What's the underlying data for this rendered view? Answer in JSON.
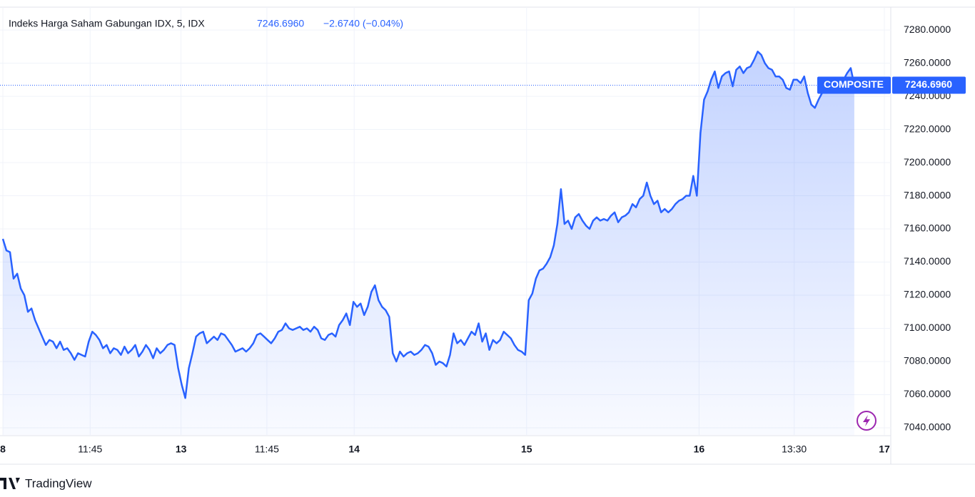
{
  "chart_data": {
    "type": "area",
    "title": "Indeks Harga Saham Gabungan IDX, 5, IDX",
    "last_price": "7246.6960",
    "change": "−2.6740 (−0.04%)",
    "brand": "TradingView",
    "series": [
      {
        "name": "COMPOSITE",
        "color": "#2962ff",
        "x": [
          0,
          1,
          2,
          3,
          4,
          5,
          6,
          7,
          8,
          9,
          10,
          11,
          12,
          13,
          14,
          15,
          16,
          17,
          18,
          19,
          20,
          21,
          22,
          23,
          24,
          25,
          26,
          27,
          28,
          29,
          30,
          31,
          32,
          33,
          34,
          35,
          36,
          37,
          38,
          39,
          40,
          41,
          42,
          43,
          44,
          45,
          46,
          47,
          48,
          49,
          50,
          51,
          52,
          53,
          54,
          55,
          56,
          57,
          58,
          59,
          60,
          61,
          62,
          63,
          64,
          65,
          66,
          67,
          68,
          69,
          70,
          71,
          72,
          73,
          74,
          75,
          76,
          77,
          78,
          79,
          80,
          81,
          82,
          83,
          84,
          85,
          86,
          87,
          88,
          89,
          90,
          91,
          92,
          93,
          94,
          95,
          96,
          97,
          98,
          99,
          100,
          101,
          102,
          103,
          104,
          105,
          106,
          107,
          108,
          109,
          110,
          111,
          112,
          113,
          114,
          115,
          116,
          117,
          118,
          119,
          120,
          121,
          122,
          123,
          124,
          125,
          126,
          127,
          128,
          129,
          130,
          131,
          132,
          133,
          134,
          135,
          136,
          137,
          138,
          139,
          140,
          141,
          142,
          143,
          144,
          145,
          146,
          147,
          148,
          149,
          150,
          151,
          152,
          153,
          154,
          155,
          156,
          157,
          158,
          159,
          160,
          161,
          162,
          163,
          164,
          165,
          166,
          167,
          168,
          169,
          170,
          171,
          172,
          173,
          174,
          175,
          176,
          177,
          178,
          179,
          180,
          181,
          182,
          183,
          184,
          185,
          186,
          187,
          188,
          189,
          190,
          191,
          192,
          193,
          194,
          195,
          196,
          197,
          198,
          199,
          200,
          201,
          202,
          203,
          204,
          205,
          206,
          207,
          208,
          209,
          210,
          211,
          212,
          213,
          214,
          215,
          216,
          217,
          218,
          219,
          220,
          221,
          222,
          223,
          224,
          225,
          226,
          227,
          228,
          229,
          230,
          231,
          232,
          233,
          234,
          235,
          236,
          237,
          238
        ],
        "values": [
          7154,
          7147,
          7146,
          7130,
          7133,
          7124,
          7120,
          7110,
          7112,
          7105,
          7100,
          7095,
          7090,
          7093,
          7092,
          7088,
          7092,
          7087,
          7088,
          7085,
          7081,
          7085,
          7084,
          7083,
          7092,
          7098,
          7096,
          7093,
          7088,
          7090,
          7085,
          7088,
          7087,
          7084,
          7089,
          7085,
          7087,
          7090,
          7083,
          7086,
          7090,
          7087,
          7082,
          7088,
          7085,
          7087,
          7090,
          7091,
          7090,
          7076,
          7066,
          7058,
          7076,
          7085,
          7095,
          7097,
          7098,
          7091,
          7093,
          7095,
          7093,
          7097,
          7096,
          7093,
          7090,
          7086,
          7087,
          7088,
          7086,
          7088,
          7091,
          7096,
          7097,
          7095,
          7093,
          7091,
          7094,
          7098,
          7099,
          7103,
          7100,
          7099,
          7100,
          7101,
          7099,
          7100,
          7098,
          7101,
          7099,
          7094,
          7093,
          7096,
          7097,
          7095,
          7102,
          7105,
          7109,
          7102,
          7116,
          7113,
          7115,
          7108,
          7113,
          7122,
          7126,
          7117,
          7113,
          7111,
          7107,
          7085,
          7080,
          7086,
          7083,
          7085,
          7086,
          7084,
          7085,
          7087,
          7090,
          7089,
          7085,
          7078,
          7080,
          7079,
          7077,
          7084,
          7097,
          7091,
          7093,
          7090,
          7094,
          7098,
          7096,
          7103,
          7092,
          7097,
          7087,
          7093,
          7091,
          7093,
          7098,
          7096,
          7094,
          7090,
          7087,
          7086,
          7084,
          7117,
          7121,
          7130,
          7135,
          7136,
          7139,
          7143,
          7150,
          7163,
          7184,
          7163,
          7165,
          7160,
          7167,
          7169,
          7165,
          7162,
          7160,
          7165,
          7167,
          7165,
          7166,
          7165,
          7168,
          7170,
          7164,
          7167,
          7168,
          7170,
          7175,
          7173,
          7178,
          7180,
          7188,
          7180,
          7175,
          7177,
          7170,
          7172,
          7170,
          7172,
          7175,
          7177,
          7178,
          7180,
          7180,
          7192,
          7180,
          7218,
          7238,
          7243,
          7250,
          7255,
          7245,
          7252,
          7254,
          7255,
          7246,
          7256,
          7258,
          7254,
          7257,
          7258,
          7262,
          7267,
          7265,
          7260,
          7257,
          7256,
          7252,
          7252,
          7250,
          7245,
          7244,
          7250,
          7250,
          7248,
          7252,
          7242,
          7235,
          7233,
          7238,
          7242,
          7245,
          7247,
          7244,
          7250,
          7248,
          7250,
          7254,
          7257,
          7246.696
        ]
      }
    ],
    "xlim": [
      -0.8,
      248.2
    ],
    "xticks": [
      {
        "value": 0,
        "label": "8"
      },
      {
        "value": 24.4,
        "label": "11:45"
      },
      {
        "value": 49.8,
        "label": "13"
      },
      {
        "value": 73.8,
        "label": "11:45"
      },
      {
        "value": 98.2,
        "label": "14"
      },
      {
        "value": 146.4,
        "label": "15"
      },
      {
        "value": 194.6,
        "label": "16"
      },
      {
        "value": 221.2,
        "label": "13:30"
      },
      {
        "value": 246.4,
        "label": "17"
      }
    ],
    "ylim": [
      7035.7,
      7293.8
    ],
    "yticks": [
      {
        "value": 7040,
        "label": "7040.0000"
      },
      {
        "value": 7060,
        "label": "7060.0000"
      },
      {
        "value": 7080,
        "label": "7080.0000"
      },
      {
        "value": 7100,
        "label": "7100.0000"
      },
      {
        "value": 7120,
        "label": "7120.0000"
      },
      {
        "value": 7140,
        "label": "7140.0000"
      },
      {
        "value": 7160,
        "label": "7160.0000"
      },
      {
        "value": 7180,
        "label": "7180.0000"
      },
      {
        "value": 7200,
        "label": "7200.0000"
      },
      {
        "value": 7220,
        "label": "7220.0000"
      },
      {
        "value": 7240,
        "label": "7240.0000"
      },
      {
        "value": 7260,
        "label": "7260.0000"
      },
      {
        "value": 7280,
        "label": "7280.0000"
      }
    ],
    "grid": true
  }
}
